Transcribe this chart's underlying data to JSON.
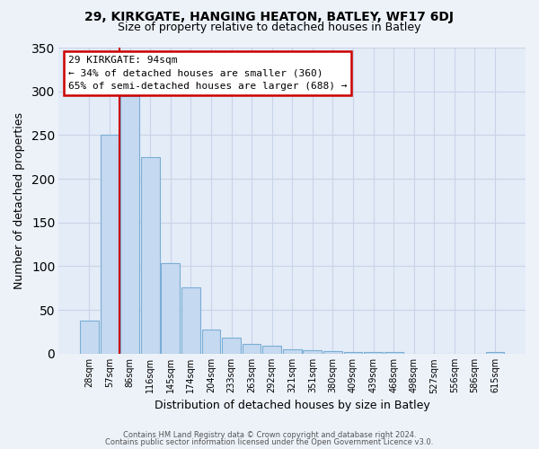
{
  "title1": "29, KIRKGATE, HANGING HEATON, BATLEY, WF17 6DJ",
  "title2": "Size of property relative to detached houses in Batley",
  "xlabel": "Distribution of detached houses by size in Batley",
  "ylabel": "Number of detached properties",
  "bar_labels": [
    "28sqm",
    "57sqm",
    "86sqm",
    "116sqm",
    "145sqm",
    "174sqm",
    "204sqm",
    "233sqm",
    "263sqm",
    "292sqm",
    "321sqm",
    "351sqm",
    "380sqm",
    "409sqm",
    "439sqm",
    "468sqm",
    "498sqm",
    "527sqm",
    "556sqm",
    "586sqm",
    "615sqm"
  ],
  "bar_values": [
    38,
    250,
    295,
    225,
    104,
    76,
    28,
    18,
    11,
    9,
    5,
    4,
    3,
    2,
    2,
    2,
    0,
    0,
    0,
    0,
    2
  ],
  "bar_color": "#c5d9f0",
  "bar_edgecolor": "#7aaed6",
  "vline_x": 1.5,
  "vline_color": "#cc0000",
  "annotation_title": "29 KIRKGATE: 94sqm",
  "annotation_line1": "← 34% of detached houses are smaller (360)",
  "annotation_line2": "65% of semi-detached houses are larger (688) →",
  "annotation_box_edgecolor": "#cc0000",
  "ylim": [
    0,
    350
  ],
  "yticks": [
    0,
    50,
    100,
    150,
    200,
    250,
    300,
    350
  ],
  "footer1": "Contains HM Land Registry data © Crown copyright and database right 2024.",
  "footer2": "Contains public sector information licensed under the Open Government Licence v3.0.",
  "bg_color": "#edf2f9",
  "plot_bg_color": "#e4ecf7",
  "grid_color": "#c8d4e8",
  "title1_fontsize": 10,
  "title2_fontsize": 9
}
